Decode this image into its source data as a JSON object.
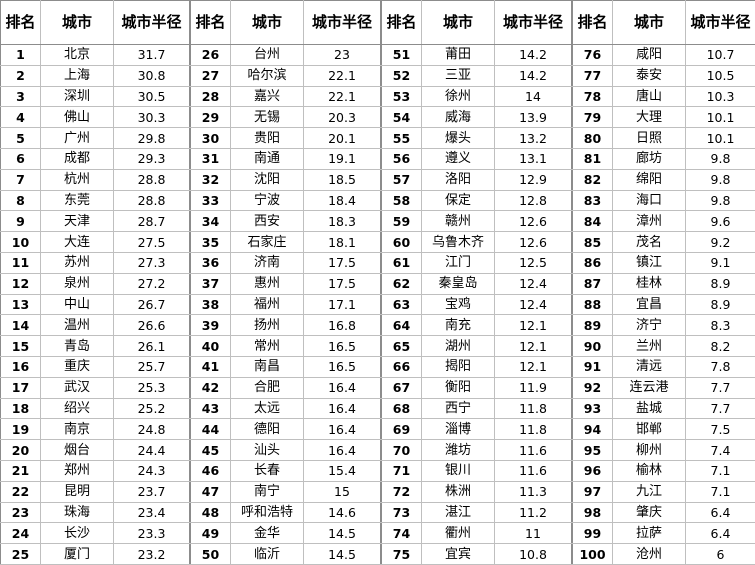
{
  "headers": {
    "rank": "排名",
    "city": "城市",
    "radius": "城市半径"
  },
  "rows": [
    {
      "rank": "1",
      "city": "北京",
      "radius": "31.7"
    },
    {
      "rank": "2",
      "city": "上海",
      "radius": "30.8"
    },
    {
      "rank": "3",
      "city": "深圳",
      "radius": "30.5"
    },
    {
      "rank": "4",
      "city": "佛山",
      "radius": "30.3"
    },
    {
      "rank": "5",
      "city": "广州",
      "radius": "29.8"
    },
    {
      "rank": "6",
      "city": "成都",
      "radius": "29.3"
    },
    {
      "rank": "7",
      "city": "杭州",
      "radius": "28.8"
    },
    {
      "rank": "8",
      "city": "东莞",
      "radius": "28.8"
    },
    {
      "rank": "9",
      "city": "天津",
      "radius": "28.7"
    },
    {
      "rank": "10",
      "city": "大连",
      "radius": "27.5"
    },
    {
      "rank": "11",
      "city": "苏州",
      "radius": "27.3"
    },
    {
      "rank": "12",
      "city": "泉州",
      "radius": "27.2"
    },
    {
      "rank": "13",
      "city": "中山",
      "radius": "26.7"
    },
    {
      "rank": "14",
      "city": "温州",
      "radius": "26.6"
    },
    {
      "rank": "15",
      "city": "青岛",
      "radius": "26.1"
    },
    {
      "rank": "16",
      "city": "重庆",
      "radius": "25.7"
    },
    {
      "rank": "17",
      "city": "武汉",
      "radius": "25.3"
    },
    {
      "rank": "18",
      "city": "绍兴",
      "radius": "25.2"
    },
    {
      "rank": "19",
      "city": "南京",
      "radius": "24.8"
    },
    {
      "rank": "20",
      "city": "烟台",
      "radius": "24.4"
    },
    {
      "rank": "21",
      "city": "郑州",
      "radius": "24.3"
    },
    {
      "rank": "22",
      "city": "昆明",
      "radius": "23.7"
    },
    {
      "rank": "23",
      "city": "珠海",
      "radius": "23.4"
    },
    {
      "rank": "24",
      "city": "长沙",
      "radius": "23.3"
    },
    {
      "rank": "25",
      "city": "厦门",
      "radius": "23.2"
    },
    {
      "rank": "26",
      "city": "台州",
      "radius": "23"
    },
    {
      "rank": "27",
      "city": "哈尔滨",
      "radius": "22.1"
    },
    {
      "rank": "28",
      "city": "嘉兴",
      "radius": "22.1"
    },
    {
      "rank": "29",
      "city": "无锡",
      "radius": "20.3"
    },
    {
      "rank": "30",
      "city": "贵阳",
      "radius": "20.1"
    },
    {
      "rank": "31",
      "city": "南通",
      "radius": "19.1"
    },
    {
      "rank": "32",
      "city": "沈阳",
      "radius": "18.5"
    },
    {
      "rank": "33",
      "city": "宁波",
      "radius": "18.4"
    },
    {
      "rank": "34",
      "city": "西安",
      "radius": "18.3"
    },
    {
      "rank": "35",
      "city": "石家庄",
      "radius": "18.1"
    },
    {
      "rank": "36",
      "city": "济南",
      "radius": "17.5"
    },
    {
      "rank": "37",
      "city": "惠州",
      "radius": "17.5"
    },
    {
      "rank": "38",
      "city": "福州",
      "radius": "17.1"
    },
    {
      "rank": "39",
      "city": "扬州",
      "radius": "16.8"
    },
    {
      "rank": "40",
      "city": "常州",
      "radius": "16.5"
    },
    {
      "rank": "41",
      "city": "南昌",
      "radius": "16.5"
    },
    {
      "rank": "42",
      "city": "合肥",
      "radius": "16.4"
    },
    {
      "rank": "43",
      "city": "太远",
      "radius": "16.4"
    },
    {
      "rank": "44",
      "city": "德阳",
      "radius": "16.4"
    },
    {
      "rank": "45",
      "city": "汕头",
      "radius": "16.4"
    },
    {
      "rank": "46",
      "city": "长春",
      "radius": "15.4"
    },
    {
      "rank": "47",
      "city": "南宁",
      "radius": "15"
    },
    {
      "rank": "48",
      "city": "呼和浩特",
      "radius": "14.6"
    },
    {
      "rank": "49",
      "city": "金华",
      "radius": "14.5"
    },
    {
      "rank": "50",
      "city": "临沂",
      "radius": "14.5"
    },
    {
      "rank": "51",
      "city": "莆田",
      "radius": "14.2"
    },
    {
      "rank": "52",
      "city": "三亚",
      "radius": "14.2"
    },
    {
      "rank": "53",
      "city": "徐州",
      "radius": "14"
    },
    {
      "rank": "54",
      "city": "威海",
      "radius": "13.9"
    },
    {
      "rank": "55",
      "city": "爆头",
      "radius": "13.2"
    },
    {
      "rank": "56",
      "city": "遵义",
      "radius": "13.1"
    },
    {
      "rank": "57",
      "city": "洛阳",
      "radius": "12.9"
    },
    {
      "rank": "58",
      "city": "保定",
      "radius": "12.8"
    },
    {
      "rank": "59",
      "city": "赣州",
      "radius": "12.6"
    },
    {
      "rank": "60",
      "city": "乌鲁木齐",
      "radius": "12.6"
    },
    {
      "rank": "61",
      "city": "江门",
      "radius": "12.5"
    },
    {
      "rank": "62",
      "city": "秦皇岛",
      "radius": "12.4"
    },
    {
      "rank": "63",
      "city": "宝鸡",
      "radius": "12.4"
    },
    {
      "rank": "64",
      "city": "南充",
      "radius": "12.1"
    },
    {
      "rank": "65",
      "city": "湖州",
      "radius": "12.1"
    },
    {
      "rank": "66",
      "city": "揭阳",
      "radius": "12.1"
    },
    {
      "rank": "67",
      "city": "衡阳",
      "radius": "11.9"
    },
    {
      "rank": "68",
      "city": "西宁",
      "radius": "11.8"
    },
    {
      "rank": "69",
      "city": "淄博",
      "radius": "11.8"
    },
    {
      "rank": "70",
      "city": "潍坊",
      "radius": "11.6"
    },
    {
      "rank": "71",
      "city": "银川",
      "radius": "11.6"
    },
    {
      "rank": "72",
      "city": "株洲",
      "radius": "11.3"
    },
    {
      "rank": "73",
      "city": "湛江",
      "radius": "11.2"
    },
    {
      "rank": "74",
      "city": "衢州",
      "radius": "11"
    },
    {
      "rank": "75",
      "city": "宜宾",
      "radius": "10.8"
    },
    {
      "rank": "76",
      "city": "咸阳",
      "radius": "10.7"
    },
    {
      "rank": "77",
      "city": "泰安",
      "radius": "10.5"
    },
    {
      "rank": "78",
      "city": "唐山",
      "radius": "10.3"
    },
    {
      "rank": "79",
      "city": "大理",
      "radius": "10.1"
    },
    {
      "rank": "80",
      "city": "日照",
      "radius": "10.1"
    },
    {
      "rank": "81",
      "city": "廊坊",
      "radius": "9.8"
    },
    {
      "rank": "82",
      "city": "绵阳",
      "radius": "9.8"
    },
    {
      "rank": "83",
      "city": "海口",
      "radius": "9.8"
    },
    {
      "rank": "84",
      "city": "漳州",
      "radius": "9.6"
    },
    {
      "rank": "85",
      "city": "茂名",
      "radius": "9.2"
    },
    {
      "rank": "86",
      "city": "镇江",
      "radius": "9.1"
    },
    {
      "rank": "87",
      "city": "桂林",
      "radius": "8.9"
    },
    {
      "rank": "88",
      "city": "宜昌",
      "radius": "8.9"
    },
    {
      "rank": "89",
      "city": "济宁",
      "radius": "8.3"
    },
    {
      "rank": "90",
      "city": "兰州",
      "radius": "8.2"
    },
    {
      "rank": "91",
      "city": "清远",
      "radius": "7.8"
    },
    {
      "rank": "92",
      "city": "连云港",
      "radius": "7.7"
    },
    {
      "rank": "93",
      "city": "盐城",
      "radius": "7.7"
    },
    {
      "rank": "94",
      "city": "邯郸",
      "radius": "7.5"
    },
    {
      "rank": "95",
      "city": "柳州",
      "radius": "7.4"
    },
    {
      "rank": "96",
      "city": "榆林",
      "radius": "7.1"
    },
    {
      "rank": "97",
      "city": "九江",
      "radius": "7.1"
    },
    {
      "rank": "98",
      "city": "肇庆",
      "radius": "6.4"
    },
    {
      "rank": "99",
      "city": "拉萨",
      "radius": "6.4"
    },
    {
      "rank": "100",
      "city": "沧州",
      "radius": "6"
    }
  ]
}
